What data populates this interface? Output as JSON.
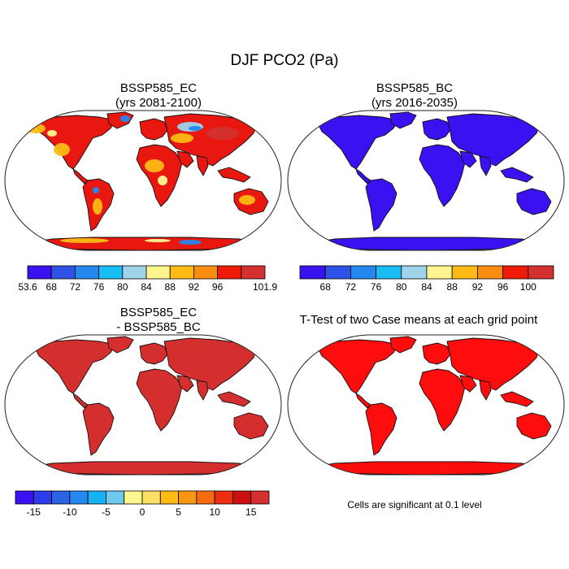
{
  "title": "DJF PCO2 (Pa)",
  "panels": [
    {
      "id": "ec",
      "title_lines": [
        "BSSP585_EC",
        "(yrs 2081-2100)"
      ],
      "ocean_color": "#ffffff",
      "land_color": "#e8170f",
      "pattern": "ec"
    },
    {
      "id": "bc",
      "title_lines": [
        "BSSP585_BC",
        "(yrs 2016-2035)"
      ],
      "ocean_color": "#ffffff",
      "land_color": "#3b11f1",
      "pattern": "bc"
    },
    {
      "id": "diff",
      "title_lines": [
        "BSSP585_EC",
        "- BSSP585_BC"
      ],
      "ocean_color": "#ffffff",
      "land_color": "#d42e2e",
      "pattern": "diff"
    },
    {
      "id": "ttest",
      "title_lines": [
        "T-Test of two Case means at each grid point"
      ],
      "ocean_color": "#ffffff",
      "land_color": "#ff0d0d",
      "pattern": "ttest"
    }
  ],
  "colorbars": [
    {
      "id": "cb-ec",
      "colors": [
        "#3a12f0",
        "#2f52e6",
        "#2488ef",
        "#17bdf3",
        "#9fd3ea",
        "#fff58f",
        "#fdbb14",
        "#f88d12",
        "#f01a08",
        "#d43030"
      ],
      "labels": [
        "53.6",
        "68",
        "72",
        "76",
        "80",
        "84",
        "88",
        "92",
        "96",
        "101.9"
      ],
      "label_mode": "edges"
    },
    {
      "id": "cb-bc",
      "colors": [
        "#3a12f0",
        "#2f52e6",
        "#2488ef",
        "#17bdf3",
        "#9fd3ea",
        "#fff58f",
        "#fdbb14",
        "#f88d12",
        "#f01a08",
        "#d43030"
      ],
      "labels": [
        "68",
        "72",
        "76",
        "80",
        "84",
        "88",
        "92",
        "96",
        "100"
      ],
      "label_mode": "inner"
    },
    {
      "id": "cb-diff",
      "colors": [
        "#3a12f0",
        "#2a3de8",
        "#2c62e4",
        "#2488ef",
        "#17b2f3",
        "#6fc8ee",
        "#fff58f",
        "#ffe066",
        "#fdbb14",
        "#f89512",
        "#f56a10",
        "#ee2e0e",
        "#cc0e0e",
        "#d43030"
      ],
      "labels": [
        "-15",
        "-10",
        "-5",
        "0",
        "5",
        "10",
        "15"
      ],
      "label_mode": "diff"
    }
  ],
  "note": "Cells are significant at 0.1 level"
}
